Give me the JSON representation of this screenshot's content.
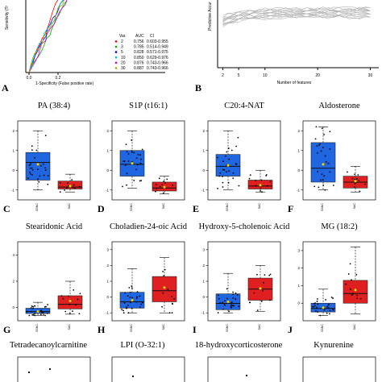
{
  "roc": {
    "xlabel": "1-Specificity (False positive rate)",
    "ylabel": "Sensitivity (Tr",
    "xticks": [
      "0.0",
      "0.2"
    ],
    "legend": {
      "headers": [
        "Var.",
        "AUC",
        "CI"
      ],
      "rows": [
        {
          "var": "2",
          "auc": "0.756",
          "ci": "0.603-0.955",
          "color": "#ff0000"
        },
        {
          "var": "3",
          "auc": "0.785",
          "ci": "0.514-0.949",
          "color": "#00aa00"
        },
        {
          "var": "5",
          "auc": "0.828",
          "ci": "0.571-0.975",
          "color": "#0000ff"
        },
        {
          "var": "10",
          "auc": "0.850",
          "ci": "0.629-0.976",
          "color": "#00cccc"
        },
        {
          "var": "20",
          "auc": "0.876",
          "ci": "0.743-0.966",
          "color": "#cc00cc"
        },
        {
          "var": "30",
          "auc": "0.887",
          "ci": "0.743-0.966",
          "color": "#aaaa00"
        }
      ]
    }
  },
  "accuracy": {
    "xlabel": "Number of features",
    "ylabel": "Predictive Accur",
    "xticks": [
      "2",
      "5",
      "10",
      "20",
      "30"
    ]
  },
  "panel_letters": {
    "A": "A",
    "B": "B",
    "C": "C",
    "D": "D",
    "E": "E",
    "F": "F",
    "G": "G",
    "H": "H",
    "I": "I",
    "J": "J"
  },
  "chart_data": [
    {
      "type": "box",
      "title": "PA (38:4)",
      "categories": [
        "SSNC",
        "SAC"
      ],
      "ylim": [
        -1.5,
        2.5
      ],
      "yticks": [
        "-1",
        "0",
        "1",
        "2"
      ],
      "series": [
        {
          "category": "SSNC",
          "min": -1.0,
          "q1": -0.5,
          "median": 0.4,
          "q3": 0.9,
          "max": 2.0,
          "mean": 0.3,
          "color": "#1f66e0"
        },
        {
          "category": "SAC",
          "min": -1.1,
          "q1": -0.95,
          "median": -0.85,
          "q3": -0.55,
          "max": -0.2,
          "mean": -0.8,
          "color": "#e02020"
        }
      ]
    },
    {
      "type": "box",
      "title": "S1P (t16:1)",
      "categories": [
        "SSNC",
        "SAC"
      ],
      "ylim": [
        -1.5,
        2.5
      ],
      "yticks": [
        "-1",
        "0",
        "1",
        "2"
      ],
      "series": [
        {
          "category": "SSNC",
          "min": -0.9,
          "q1": -0.3,
          "median": 0.3,
          "q3": 1.0,
          "max": 2.0,
          "mean": 0.35,
          "color": "#1f66e0"
        },
        {
          "category": "SAC",
          "min": -1.2,
          "q1": -1.05,
          "median": -0.9,
          "q3": -0.6,
          "max": -0.3,
          "mean": -0.85,
          "color": "#e02020"
        }
      ]
    },
    {
      "type": "box",
      "title": "C20:4-NAT",
      "categories": [
        "SSNC",
        "SAC"
      ],
      "ylim": [
        -1.5,
        2.5
      ],
      "yticks": [
        "-1",
        "0",
        "1",
        "2"
      ],
      "series": [
        {
          "category": "SSNC",
          "min": -1.0,
          "q1": -0.3,
          "median": 0.2,
          "q3": 0.8,
          "max": 2.0,
          "mean": 0.25,
          "color": "#1f66e0"
        },
        {
          "category": "SAC",
          "min": -1.1,
          "q1": -0.95,
          "median": -0.8,
          "q3": -0.5,
          "max": 0.0,
          "mean": -0.75,
          "color": "#e02020"
        }
      ]
    },
    {
      "type": "box",
      "title": "Aldosterone",
      "categories": [
        "SSNC",
        "SAC"
      ],
      "ylim": [
        -1.5,
        2.5
      ],
      "yticks": [
        "-1",
        "0",
        "1",
        "2"
      ],
      "series": [
        {
          "category": "SSNC",
          "min": -1.0,
          "q1": -0.6,
          "median": 0.1,
          "q3": 1.4,
          "max": 2.2,
          "mean": 0.3,
          "color": "#1f66e0"
        },
        {
          "category": "SAC",
          "min": -1.1,
          "q1": -0.9,
          "median": -0.6,
          "q3": -0.3,
          "max": 0.2,
          "mean": -0.55,
          "color": "#e02020"
        }
      ]
    },
    {
      "type": "box",
      "title": "Stearidonic Acid",
      "categories": [
        "SSNC",
        "SAC"
      ],
      "ylim": [
        -1.0,
        5.0
      ],
      "yticks": [
        "0",
        "2",
        "4"
      ],
      "series": [
        {
          "category": "SSNC",
          "min": -0.6,
          "q1": -0.45,
          "median": -0.3,
          "q3": -0.05,
          "max": 0.4,
          "mean": -0.3,
          "color": "#1f66e0"
        },
        {
          "category": "SAC",
          "min": -0.5,
          "q1": -0.1,
          "median": 0.25,
          "q3": 0.9,
          "max": 2.0,
          "mean": 0.5,
          "color": "#e02020"
        }
      ]
    },
    {
      "type": "box",
      "title": "Choladien-24-oic Acid",
      "categories": [
        "SSNC",
        "SAC"
      ],
      "ylim": [
        -1.5,
        3.5
      ],
      "yticks": [
        "-1",
        "0",
        "1",
        "2",
        "3"
      ],
      "series": [
        {
          "category": "SSNC",
          "min": -1.0,
          "q1": -0.7,
          "median": -0.3,
          "q3": 0.3,
          "max": 1.8,
          "mean": -0.2,
          "color": "#1f66e0"
        },
        {
          "category": "SAC",
          "min": -1.0,
          "q1": -0.3,
          "median": 0.4,
          "q3": 1.3,
          "max": 2.5,
          "mean": 0.6,
          "color": "#e02020"
        }
      ]
    },
    {
      "type": "box",
      "title": "Hydroxy-5-cholenoic Acid",
      "categories": [
        "SSNC",
        "SAC"
      ],
      "ylim": [
        -1.5,
        3.5
      ],
      "yticks": [
        "-1",
        "0",
        "1",
        "2",
        "3"
      ],
      "series": [
        {
          "category": "SSNC",
          "min": -1.0,
          "q1": -0.8,
          "median": -0.4,
          "q3": 0.2,
          "max": 1.5,
          "mean": -0.3,
          "color": "#1f66e0"
        },
        {
          "category": "SAC",
          "min": -0.9,
          "q1": -0.2,
          "median": 0.5,
          "q3": 1.2,
          "max": 2.0,
          "mean": 0.55,
          "color": "#e02020"
        }
      ]
    },
    {
      "type": "box",
      "title": "MG (18:2)",
      "categories": [
        "SSNC",
        "SAC"
      ],
      "ylim": [
        -1.0,
        3.5
      ],
      "yticks": [
        "0",
        "1",
        "2",
        "3"
      ],
      "series": [
        {
          "category": "SSNC",
          "min": -0.7,
          "q1": -0.5,
          "median": -0.3,
          "q3": 0.0,
          "max": 0.8,
          "mean": -0.25,
          "color": "#1f66e0"
        },
        {
          "category": "SAC",
          "min": -0.6,
          "q1": 0.0,
          "median": 0.55,
          "q3": 1.3,
          "max": 3.2,
          "mean": 0.75,
          "color": "#e02020"
        }
      ]
    }
  ],
  "bottom_titles": [
    "Tetradecanoylcarnitine",
    "LPI (O-32:1)",
    "18-hydroxycorticosterone",
    "Kynurenine"
  ]
}
